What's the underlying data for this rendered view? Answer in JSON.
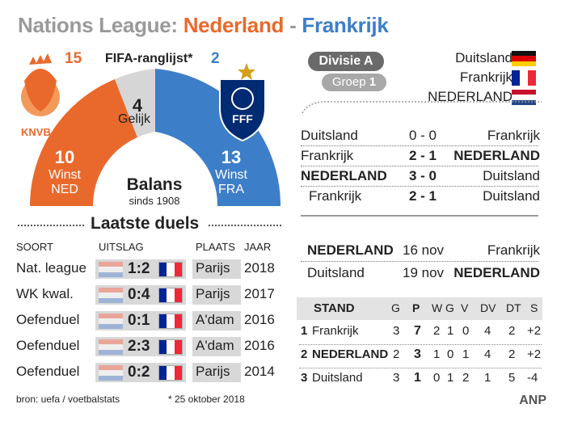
{
  "title": {
    "part1": "Nations League:",
    "part2": "Nederland",
    "sep": "-",
    "part3": "Frankrijk"
  },
  "colors": {
    "orange": "#e9692c",
    "blue": "#3d7ec9",
    "grey": "#9a9a9a",
    "ned_red": "#c8102e",
    "ned_blue": "#21468b",
    "fra_blue": "#002395",
    "fra_red": "#ed2939"
  },
  "fifa": {
    "ned_rank": "15",
    "label": "FIFA-ranglijst*",
    "fra_rank": "2"
  },
  "logos": {
    "knvb_text": "KNVB",
    "fff_text": "FFF"
  },
  "balans": {
    "ned_wins": "10",
    "ned_label1": "Winst",
    "ned_label2": "NED",
    "draws": "4",
    "draws_label": "Gelijk",
    "fra_wins": "13",
    "fra_label1": "Winst",
    "fra_label2": "FRA",
    "title": "Balans",
    "subtitle": "sinds 1908"
  },
  "duels": {
    "title": "Laatste duels",
    "headers": {
      "soort": "SOORT",
      "uitslag": "UITSLAG",
      "plaats": "PLAATS",
      "jaar": "JAAR"
    },
    "rows": [
      {
        "soort": "Nat. league",
        "uitslag": "1:2",
        "plaats": "Parijs",
        "jaar": "2018"
      },
      {
        "soort": "WK kwal.",
        "uitslag": "0:4",
        "plaats": "Parijs",
        "jaar": "2017"
      },
      {
        "soort": "Oefenduel",
        "uitslag": "0:1",
        "plaats": "A'dam",
        "jaar": "2016"
      },
      {
        "soort": "Oefenduel",
        "uitslag": "2:3",
        "plaats": "A'dam",
        "jaar": "2016"
      },
      {
        "soort": "Oefenduel",
        "uitslag": "0:2",
        "plaats": "Parijs",
        "jaar": "2014"
      }
    ]
  },
  "footer": {
    "source": "bron: uefa / voetbalstats",
    "note": "* 25 oktober 2018",
    "agency": "ANP"
  },
  "group": {
    "division": "Divisie A",
    "group_label": "Groep",
    "group_num": "1",
    "teams": [
      {
        "name": "Duitsland",
        "flag": "ger"
      },
      {
        "name": "Frankrijk",
        "flag": "fra"
      },
      {
        "name": "NEDERLAND",
        "flag": "ned"
      }
    ]
  },
  "results": [
    {
      "home": "Duitsland",
      "score": "0 - 0",
      "away": "Frankrijk",
      "home_bold": false,
      "away_bold": false,
      "score_bold": false
    },
    {
      "home": "Frankrijk",
      "score": "2 - 1",
      "away": "NEDERLAND",
      "home_bold": false,
      "away_bold": true,
      "score_bold": true
    },
    {
      "home": "NEDERLAND",
      "score": "3 - 0",
      "away": "Duitsland",
      "home_bold": true,
      "away_bold": false,
      "score_bold": true
    },
    {
      "home": "Frankrijk",
      "score": "2 - 1",
      "away": "Duitsland",
      "home_bold": false,
      "away_bold": false,
      "score_bold": true
    }
  ],
  "upcoming": [
    {
      "home": "NEDERLAND",
      "date": "16 nov",
      "away": "Frankrijk"
    },
    {
      "home": "Duitsland",
      "date": "19 nov",
      "away": "NEDERLAND"
    }
  ],
  "standings": {
    "headers": {
      "stand": "STAND",
      "g": "G",
      "p": "P",
      "w": "W",
      "gg": "G",
      "v": "V",
      "dv": "DV",
      "dt": "DT",
      "s": "S"
    },
    "rows": [
      {
        "pos": "1",
        "team": "Frankrijk",
        "g": "3",
        "p": "7",
        "w": "2",
        "gg": "1",
        "v": "0",
        "dv": "4",
        "dt": "2",
        "s": "+2"
      },
      {
        "pos": "2",
        "team": "NEDERLAND",
        "g": "2",
        "p": "3",
        "w": "1",
        "gg": "0",
        "v": "1",
        "dv": "4",
        "dt": "2",
        "s": "+2"
      },
      {
        "pos": "3",
        "team": "Duitsland",
        "g": "3",
        "p": "1",
        "w": "0",
        "gg": "1",
        "v": "2",
        "dv": "1",
        "dt": "5",
        "s": "-4"
      }
    ]
  }
}
